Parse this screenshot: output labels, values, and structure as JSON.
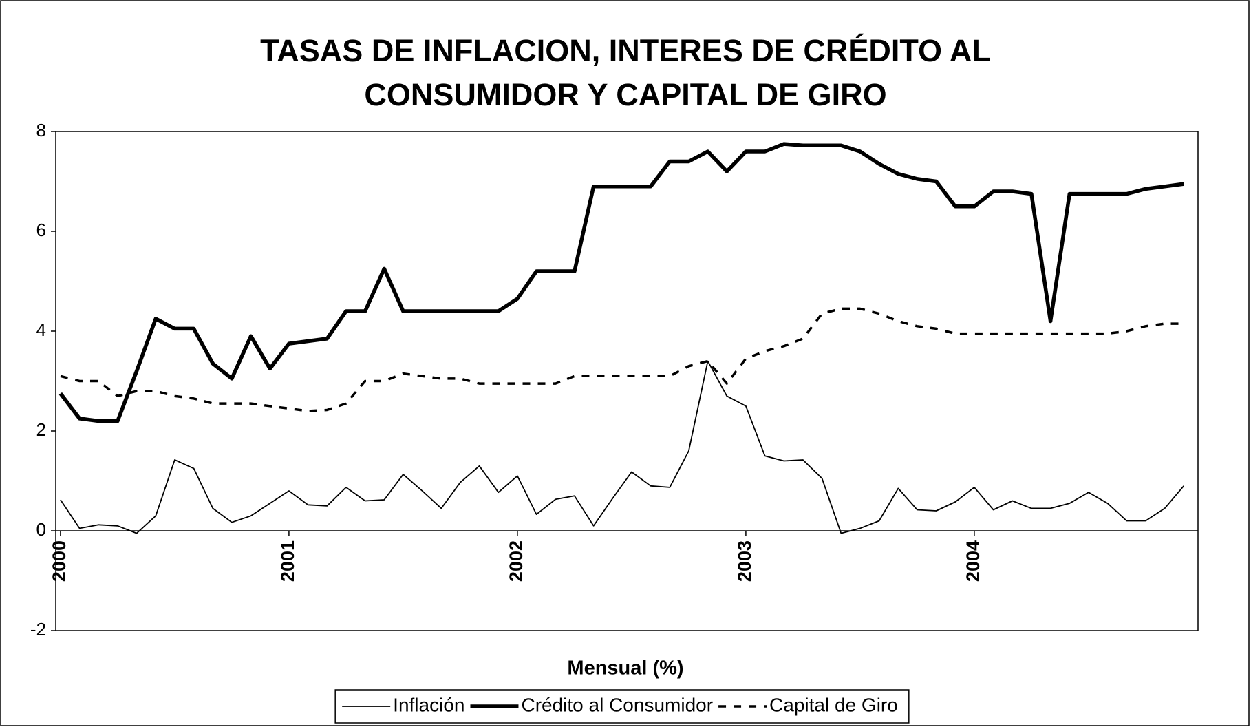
{
  "chart_data": {
    "type": "line",
    "title": "TASAS DE INFLACION, INTERES DE CRÉDITO AL CONSUMIDOR Y CAPITAL DE GIRO",
    "xlabel": "Mensual (%)",
    "categories": [
      "2000",
      null,
      null,
      null,
      null,
      null,
      null,
      null,
      null,
      null,
      null,
      null,
      "2001",
      null,
      null,
      null,
      null,
      null,
      null,
      null,
      null,
      null,
      null,
      null,
      "2002",
      null,
      null,
      null,
      null,
      null,
      null,
      null,
      null,
      null,
      null,
      null,
      "2003",
      null,
      null,
      null,
      null,
      null,
      null,
      null,
      null,
      null,
      null,
      null,
      "2004",
      null,
      null,
      null,
      null,
      null,
      null,
      null,
      null,
      null,
      null,
      null
    ],
    "series": [
      {
        "name": "Inflación",
        "color": "#000000",
        "style": "thin",
        "values": [
          0.62,
          0.05,
          0.12,
          0.1,
          -0.05,
          0.3,
          1.42,
          1.25,
          0.45,
          0.17,
          0.3,
          0.55,
          0.8,
          0.52,
          0.5,
          0.87,
          0.6,
          0.62,
          1.13,
          0.8,
          0.45,
          0.97,
          1.3,
          0.77,
          1.1,
          0.33,
          0.63,
          0.7,
          0.1,
          0.65,
          1.18,
          0.9,
          0.87,
          1.6,
          3.4,
          2.7,
          2.5,
          1.5,
          1.4,
          1.42,
          1.05,
          -0.05,
          0.05,
          0.2,
          0.85,
          0.42,
          0.4,
          0.58,
          0.87,
          0.42,
          0.6,
          0.45,
          0.45,
          0.55,
          0.77,
          0.55,
          0.2,
          0.2,
          0.45,
          0.9
        ]
      },
      {
        "name": "Crédito al Consumidor",
        "color": "#000000",
        "style": "thick",
        "values": [
          2.75,
          2.25,
          2.2,
          2.2,
          3.2,
          4.25,
          4.05,
          4.05,
          3.35,
          3.05,
          3.9,
          3.25,
          3.75,
          3.8,
          3.85,
          4.4,
          4.4,
          5.25,
          4.4,
          4.4,
          4.4,
          4.4,
          4.4,
          4.4,
          4.65,
          5.2,
          5.2,
          5.2,
          6.9,
          6.9,
          6.9,
          6.9,
          7.4,
          7.4,
          7.6,
          7.2,
          7.6,
          7.6,
          7.75,
          7.72,
          7.72,
          7.72,
          7.6,
          7.35,
          7.15,
          7.05,
          7.0,
          6.5,
          6.5,
          6.8,
          6.8,
          6.75,
          4.2,
          6.75,
          6.75,
          6.75,
          6.75,
          6.85,
          6.9,
          6.95
        ]
      },
      {
        "name": "Capital de Giro",
        "color": "#000000",
        "style": "dashed",
        "values": [
          3.1,
          3.0,
          3.0,
          2.7,
          2.8,
          2.8,
          2.7,
          2.65,
          2.55,
          2.55,
          2.55,
          2.5,
          2.45,
          2.4,
          2.42,
          2.55,
          3.0,
          3.0,
          3.15,
          3.1,
          3.05,
          3.05,
          2.95,
          2.95,
          2.95,
          2.95,
          2.95,
          3.1,
          3.1,
          3.1,
          3.1,
          3.1,
          3.1,
          3.3,
          3.4,
          2.95,
          3.45,
          3.6,
          3.7,
          3.85,
          4.35,
          4.45,
          4.45,
          4.35,
          4.2,
          4.1,
          4.05,
          3.95,
          3.95,
          3.95,
          3.95,
          3.95,
          3.95,
          3.95,
          3.95,
          3.95,
          4.0,
          4.1,
          4.15,
          4.15
        ]
      }
    ],
    "ylim": [
      -2,
      8
    ],
    "yticks": [
      -2,
      0,
      2,
      4,
      6,
      8
    ],
    "grid": false,
    "legend": "bottom"
  }
}
